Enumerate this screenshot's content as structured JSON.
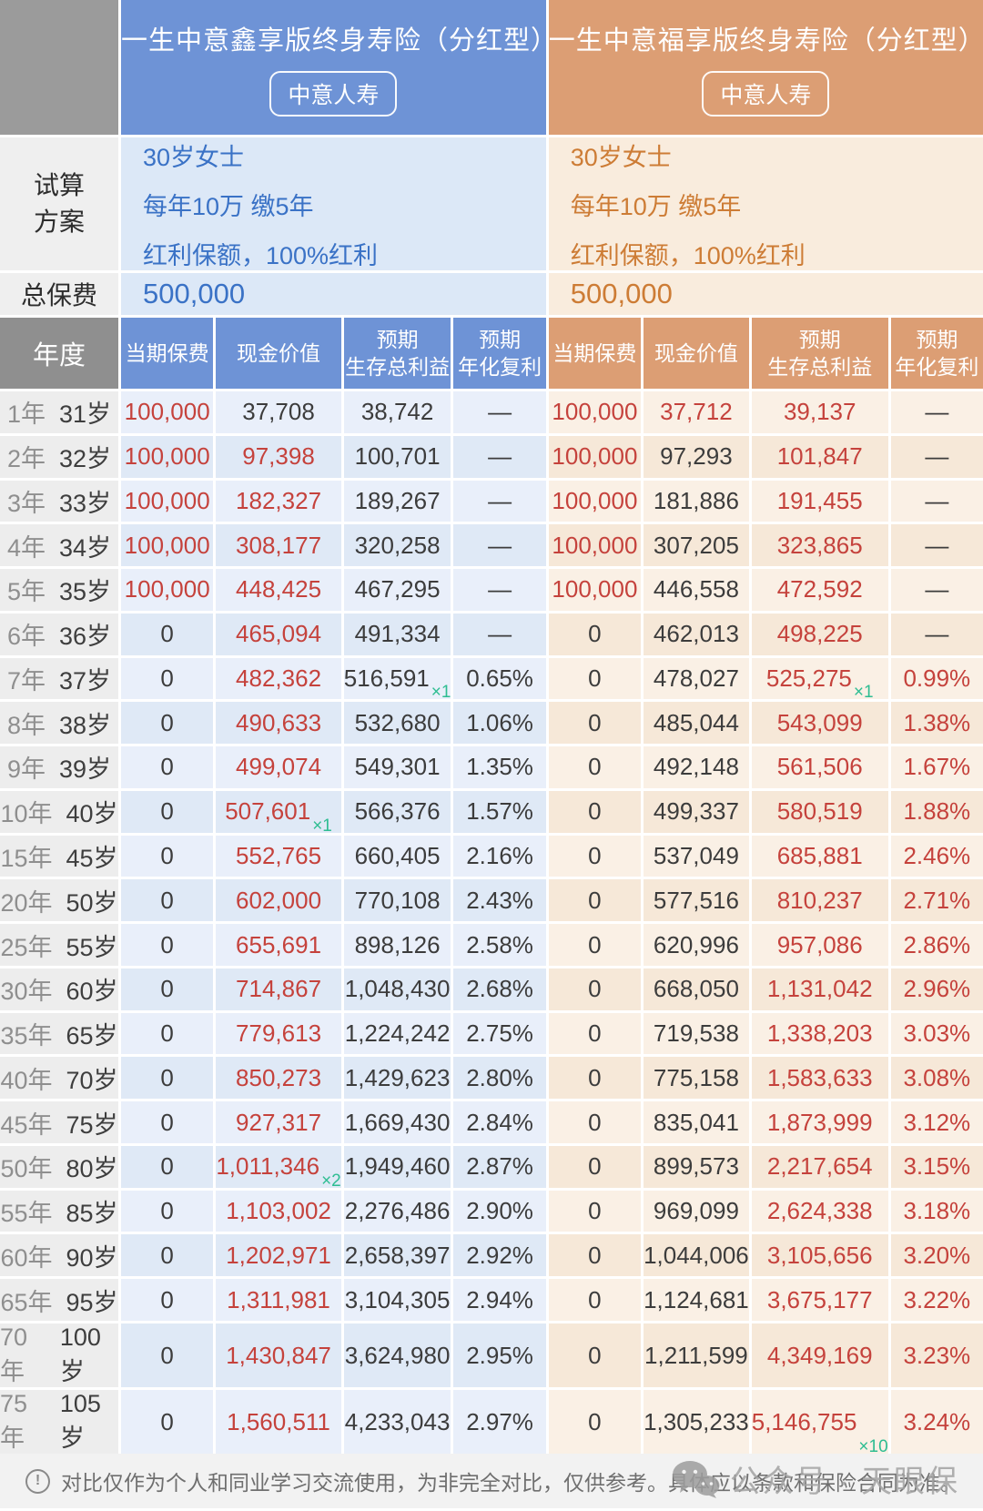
{
  "labels": {
    "plan": "试算方案",
    "total_premium": "总保费",
    "year": "年度"
  },
  "products": {
    "left": {
      "title": "一生中意鑫享版终身寿险（分红型）",
      "badge": "中意人寿",
      "plan_lines": [
        "30岁女士",
        "每年10万 缴5年",
        "红利保额，100%红利"
      ],
      "total_premium": "500,000"
    },
    "right": {
      "title": "一生中意福享版终身寿险（分红型）",
      "badge": "中意人寿",
      "plan_lines": [
        "30岁女士",
        "每年10万 缴5年",
        "红利保额，100%红利"
      ],
      "total_premium": "500,000"
    }
  },
  "columns": [
    [
      "当期保费"
    ],
    [
      "现金价值"
    ],
    [
      "预期",
      "生存总利益"
    ],
    [
      "预期",
      "年化复利"
    ]
  ],
  "table": {
    "rows": [
      {
        "year": "1年",
        "age": "31岁",
        "cells": [
          {
            "t": "100,000",
            "red": true
          },
          {
            "t": "37,708"
          },
          {
            "t": "38,742"
          },
          {
            "t": "—"
          },
          {
            "t": "100,000",
            "red": true
          },
          {
            "t": "37,712",
            "red": true
          },
          {
            "t": "39,137",
            "red": true
          },
          {
            "t": "—"
          }
        ]
      },
      {
        "year": "2年",
        "age": "32岁",
        "cells": [
          {
            "t": "100,000",
            "red": true
          },
          {
            "t": "97,398",
            "red": true
          },
          {
            "t": "100,701"
          },
          {
            "t": "—"
          },
          {
            "t": "100,000",
            "red": true
          },
          {
            "t": "97,293"
          },
          {
            "t": "101,847",
            "red": true
          },
          {
            "t": "—"
          }
        ]
      },
      {
        "year": "3年",
        "age": "33岁",
        "cells": [
          {
            "t": "100,000",
            "red": true
          },
          {
            "t": "182,327",
            "red": true
          },
          {
            "t": "189,267"
          },
          {
            "t": "—"
          },
          {
            "t": "100,000",
            "red": true
          },
          {
            "t": "181,886"
          },
          {
            "t": "191,455",
            "red": true
          },
          {
            "t": "—"
          }
        ]
      },
      {
        "year": "4年",
        "age": "34岁",
        "cells": [
          {
            "t": "100,000",
            "red": true
          },
          {
            "t": "308,177",
            "red": true
          },
          {
            "t": "320,258"
          },
          {
            "t": "—"
          },
          {
            "t": "100,000",
            "red": true
          },
          {
            "t": "307,205"
          },
          {
            "t": "323,865",
            "red": true
          },
          {
            "t": "—"
          }
        ]
      },
      {
        "year": "5年",
        "age": "35岁",
        "cells": [
          {
            "t": "100,000",
            "red": true
          },
          {
            "t": "448,425",
            "red": true
          },
          {
            "t": "467,295"
          },
          {
            "t": "—"
          },
          {
            "t": "100,000",
            "red": true
          },
          {
            "t": "446,558"
          },
          {
            "t": "472,592",
            "red": true
          },
          {
            "t": "—"
          }
        ]
      },
      {
        "year": "6年",
        "age": "36岁",
        "cells": [
          {
            "t": "0"
          },
          {
            "t": "465,094",
            "red": true
          },
          {
            "t": "491,334"
          },
          {
            "t": "—"
          },
          {
            "t": "0"
          },
          {
            "t": "462,013"
          },
          {
            "t": "498,225",
            "red": true
          },
          {
            "t": "—"
          }
        ]
      },
      {
        "year": "7年",
        "age": "37岁",
        "cells": [
          {
            "t": "0"
          },
          {
            "t": "482,362",
            "red": true
          },
          {
            "t": "516,591",
            "sup": "×1"
          },
          {
            "t": "0.65%"
          },
          {
            "t": "0"
          },
          {
            "t": "478,027"
          },
          {
            "t": "525,275",
            "red": true,
            "sup": "×1"
          },
          {
            "t": "0.99%",
            "red": true
          }
        ]
      },
      {
        "year": "8年",
        "age": "38岁",
        "cells": [
          {
            "t": "0"
          },
          {
            "t": "490,633",
            "red": true
          },
          {
            "t": "532,680"
          },
          {
            "t": "1.06%"
          },
          {
            "t": "0"
          },
          {
            "t": "485,044"
          },
          {
            "t": "543,099",
            "red": true
          },
          {
            "t": "1.38%",
            "red": true
          }
        ]
      },
      {
        "year": "9年",
        "age": "39岁",
        "cells": [
          {
            "t": "0"
          },
          {
            "t": "499,074",
            "red": true
          },
          {
            "t": "549,301"
          },
          {
            "t": "1.35%"
          },
          {
            "t": "0"
          },
          {
            "t": "492,148"
          },
          {
            "t": "561,506",
            "red": true
          },
          {
            "t": "1.67%",
            "red": true
          }
        ]
      },
      {
        "year": "10年",
        "age": "40岁",
        "cells": [
          {
            "t": "0"
          },
          {
            "t": "507,601",
            "red": true,
            "sup": "×1"
          },
          {
            "t": "566,376"
          },
          {
            "t": "1.57%"
          },
          {
            "t": "0"
          },
          {
            "t": "499,337"
          },
          {
            "t": "580,519",
            "red": true
          },
          {
            "t": "1.88%",
            "red": true
          }
        ]
      },
      {
        "year": "15年",
        "age": "45岁",
        "cells": [
          {
            "t": "0"
          },
          {
            "t": "552,765",
            "red": true
          },
          {
            "t": "660,405"
          },
          {
            "t": "2.16%"
          },
          {
            "t": "0"
          },
          {
            "t": "537,049"
          },
          {
            "t": "685,881",
            "red": true
          },
          {
            "t": "2.46%",
            "red": true
          }
        ]
      },
      {
        "year": "20年",
        "age": "50岁",
        "cells": [
          {
            "t": "0"
          },
          {
            "t": "602,000",
            "red": true
          },
          {
            "t": "770,108"
          },
          {
            "t": "2.43%"
          },
          {
            "t": "0"
          },
          {
            "t": "577,516"
          },
          {
            "t": "810,237",
            "red": true
          },
          {
            "t": "2.71%",
            "red": true
          }
        ]
      },
      {
        "year": "25年",
        "age": "55岁",
        "cells": [
          {
            "t": "0"
          },
          {
            "t": "655,691",
            "red": true
          },
          {
            "t": "898,126"
          },
          {
            "t": "2.58%"
          },
          {
            "t": "0"
          },
          {
            "t": "620,996"
          },
          {
            "t": "957,086",
            "red": true
          },
          {
            "t": "2.86%",
            "red": true
          }
        ]
      },
      {
        "year": "30年",
        "age": "60岁",
        "cells": [
          {
            "t": "0"
          },
          {
            "t": "714,867",
            "red": true
          },
          {
            "t": "1,048,430"
          },
          {
            "t": "2.68%"
          },
          {
            "t": "0"
          },
          {
            "t": "668,050"
          },
          {
            "t": "1,131,042",
            "red": true
          },
          {
            "t": "2.96%",
            "red": true
          }
        ]
      },
      {
        "year": "35年",
        "age": "65岁",
        "cells": [
          {
            "t": "0"
          },
          {
            "t": "779,613",
            "red": true
          },
          {
            "t": "1,224,242"
          },
          {
            "t": "2.75%"
          },
          {
            "t": "0"
          },
          {
            "t": "719,538"
          },
          {
            "t": "1,338,203",
            "red": true
          },
          {
            "t": "3.03%",
            "red": true
          }
        ]
      },
      {
        "year": "40年",
        "age": "70岁",
        "cells": [
          {
            "t": "0"
          },
          {
            "t": "850,273",
            "red": true
          },
          {
            "t": "1,429,623"
          },
          {
            "t": "2.80%"
          },
          {
            "t": "0"
          },
          {
            "t": "775,158"
          },
          {
            "t": "1,583,633",
            "red": true
          },
          {
            "t": "3.08%",
            "red": true
          }
        ]
      },
      {
        "year": "45年",
        "age": "75岁",
        "cells": [
          {
            "t": "0"
          },
          {
            "t": "927,317",
            "red": true
          },
          {
            "t": "1,669,430"
          },
          {
            "t": "2.84%"
          },
          {
            "t": "0"
          },
          {
            "t": "835,041"
          },
          {
            "t": "1,873,999",
            "red": true
          },
          {
            "t": "3.12%",
            "red": true
          }
        ]
      },
      {
        "year": "50年",
        "age": "80岁",
        "cells": [
          {
            "t": "0"
          },
          {
            "t": "1,011,346",
            "red": true,
            "sup": "×2"
          },
          {
            "t": "1,949,460"
          },
          {
            "t": "2.87%"
          },
          {
            "t": "0"
          },
          {
            "t": "899,573"
          },
          {
            "t": "2,217,654",
            "red": true
          },
          {
            "t": "3.15%",
            "red": true
          }
        ]
      },
      {
        "year": "55年",
        "age": "85岁",
        "cells": [
          {
            "t": "0"
          },
          {
            "t": "1,103,002",
            "red": true
          },
          {
            "t": "2,276,486"
          },
          {
            "t": "2.90%"
          },
          {
            "t": "0"
          },
          {
            "t": "969,099"
          },
          {
            "t": "2,624,338",
            "red": true
          },
          {
            "t": "3.18%",
            "red": true
          }
        ]
      },
      {
        "year": "60年",
        "age": "90岁",
        "cells": [
          {
            "t": "0"
          },
          {
            "t": "1,202,971",
            "red": true
          },
          {
            "t": "2,658,397"
          },
          {
            "t": "2.92%"
          },
          {
            "t": "0"
          },
          {
            "t": "1,044,006"
          },
          {
            "t": "3,105,656",
            "red": true
          },
          {
            "t": "3.20%",
            "red": true
          }
        ]
      },
      {
        "year": "65年",
        "age": "95岁",
        "cells": [
          {
            "t": "0"
          },
          {
            "t": "1,311,981",
            "red": true
          },
          {
            "t": "3,104,305"
          },
          {
            "t": "2.94%"
          },
          {
            "t": "0"
          },
          {
            "t": "1,124,681"
          },
          {
            "t": "3,675,177",
            "red": true
          },
          {
            "t": "3.22%",
            "red": true
          }
        ]
      },
      {
        "year": "70年",
        "age": "100岁",
        "cells": [
          {
            "t": "0"
          },
          {
            "t": "1,430,847",
            "red": true
          },
          {
            "t": "3,624,980"
          },
          {
            "t": "2.95%"
          },
          {
            "t": "0"
          },
          {
            "t": "1,211,599"
          },
          {
            "t": "4,349,169",
            "red": true
          },
          {
            "t": "3.23%",
            "red": true
          }
        ]
      },
      {
        "year": "75年",
        "age": "105岁",
        "cells": [
          {
            "t": "0"
          },
          {
            "t": "1,560,511",
            "red": true
          },
          {
            "t": "4,233,043"
          },
          {
            "t": "2.97%"
          },
          {
            "t": "0"
          },
          {
            "t": "1,305,233"
          },
          {
            "t": "5,146,755",
            "red": true,
            "sup": "×10"
          },
          {
            "t": "3.24%",
            "red": true
          }
        ]
      }
    ]
  },
  "footer": {
    "icon_glyph": "!",
    "disclaimer": "对比仅作为个人和同业学习交流使用，为非完全对比，仅供参考。具体应以条款和保险合同为准。",
    "watermark": "公众号 · 天眼保"
  },
  "colors": {
    "blue_header": "#6e93d6",
    "orange_header": "#dc9e74",
    "blue_text": "#3a72c6",
    "orange_text": "#cd7c35",
    "highlight_red": "#c5423c",
    "note_green": "#2ebd92",
    "gray_header": "#8f8f8f"
  }
}
